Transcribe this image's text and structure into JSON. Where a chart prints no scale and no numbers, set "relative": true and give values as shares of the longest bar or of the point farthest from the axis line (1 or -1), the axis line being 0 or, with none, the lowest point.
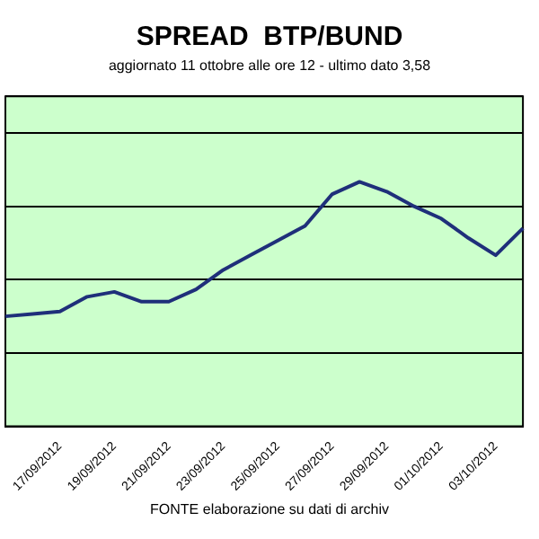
{
  "chart_data": {
    "type": "line",
    "title": "SPREAD  BTP/BUND",
    "subtitle": "aggiornato 11 ottobre alle ore 12 - ultimo dato 3,58",
    "categories": [
      null,
      null,
      "17/09/2012",
      null,
      "19/09/2012",
      null,
      "21/09/2012",
      null,
      "23/09/2012",
      null,
      "25/09/2012",
      null,
      "27/09/2012",
      null,
      "29/09/2012",
      null,
      "01/10/2012",
      null,
      "03/10/2012",
      null
    ],
    "relative": true,
    "series": [
      {
        "color": "#1f2f7a",
        "values": [
          0.45,
          0.46,
          0.47,
          0.53,
          0.55,
          0.51,
          0.51,
          0.56,
          0.64,
          0.7,
          0.76,
          0.82,
          0.95,
          1,
          0.96,
          0.9,
          0.85,
          0.77,
          0.7,
          0.81
        ]
      }
    ],
    "grid": "y",
    "legend": false,
    "marker": "none",
    "line_style": "solid",
    "annotations": [
      "FONTE elaborazione su dati di archiv"
    ]
  }
}
